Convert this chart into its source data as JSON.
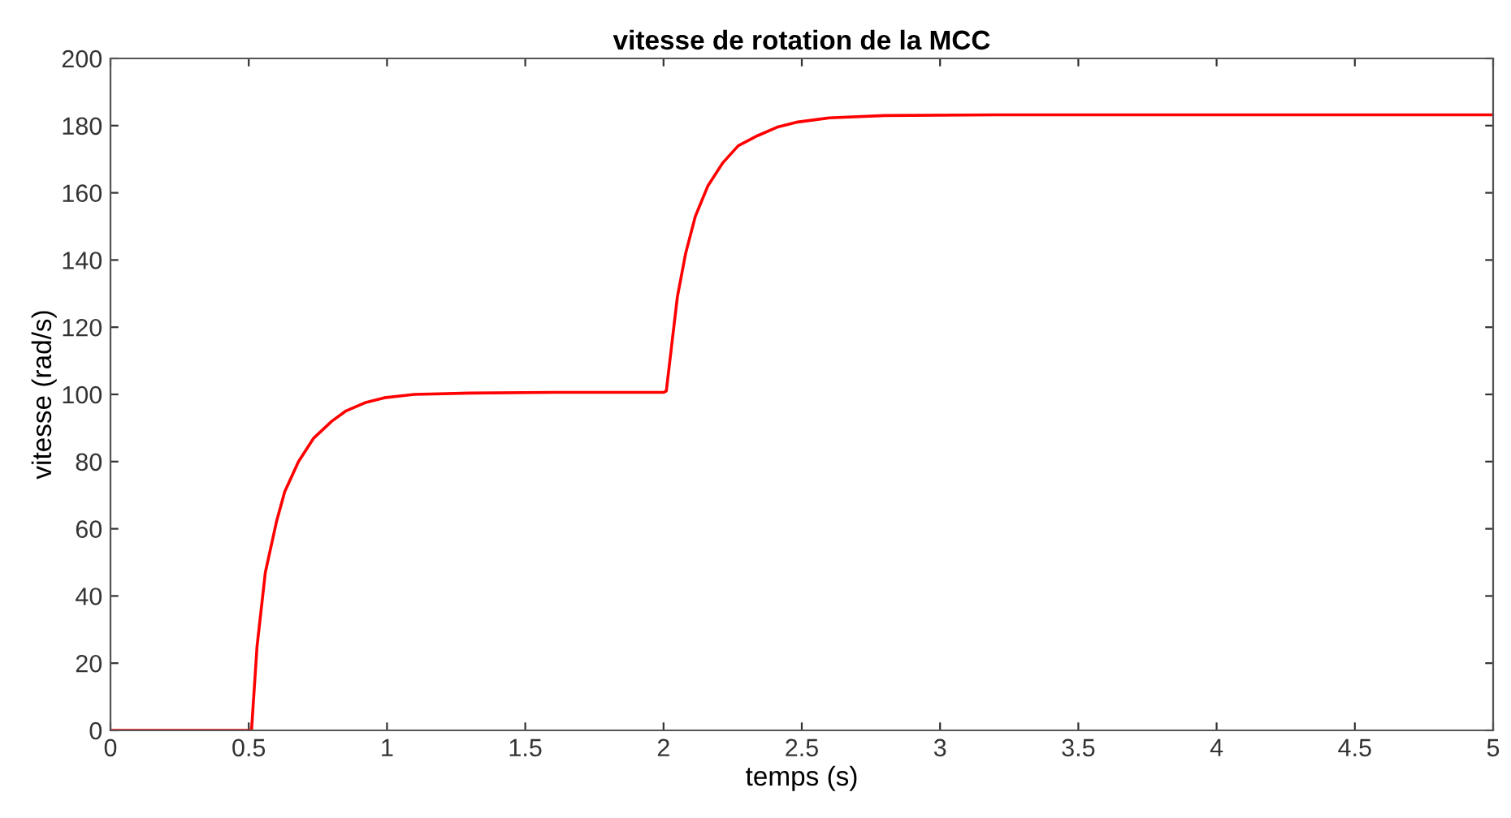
{
  "chart_data": {
    "type": "line",
    "title": "vitesse de rotation de la MCC",
    "xlabel": "temps (s)",
    "ylabel": "vitesse (rad/s)",
    "series": [
      {
        "color": "#ff0000",
        "x": [
          0,
          0.51,
          0.53,
          0.56,
          0.6,
          0.63,
          0.68,
          0.735,
          0.8,
          0.85,
          0.92,
          0.99,
          1.1,
          1.3,
          1.6,
          2.0,
          2.01,
          2.03,
          2.05,
          2.08,
          2.115,
          2.16,
          2.215,
          2.27,
          2.34,
          2.41,
          2.48,
          2.6,
          2.8,
          3.2,
          4.0,
          5.0
        ],
        "values": [
          0,
          0,
          25,
          47,
          62,
          71,
          80,
          87,
          92,
          95,
          97.5,
          99,
          100,
          100.4,
          100.6,
          100.6,
          101,
          115,
          129,
          142,
          153,
          162,
          169,
          174,
          177,
          179.5,
          181,
          182.3,
          183,
          183.2,
          183.2,
          183.2
        ]
      }
    ],
    "xlim": [
      0,
      5
    ],
    "ylim": [
      0,
      200
    ],
    "xticks": [
      0,
      0.5,
      1,
      1.5,
      2,
      2.5,
      3,
      3.5,
      4,
      4.5,
      5
    ],
    "yticks": [
      0,
      20,
      40,
      60,
      80,
      100,
      120,
      140,
      160,
      180,
      200
    ],
    "grid": false,
    "legend": false,
    "marker": "none",
    "line_style": "solid"
  }
}
